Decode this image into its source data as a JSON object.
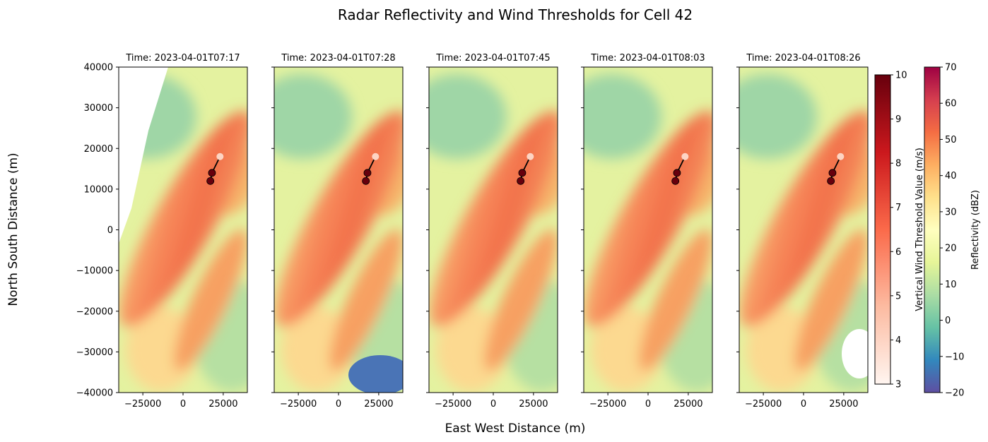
{
  "chart_data": {
    "type": "heatmap",
    "title": "Radar Reflectivity and Wind Thresholds for Cell 42",
    "xlabel": "East West Distance (m)",
    "ylabel": "North South Distance (m)",
    "xlim": [
      -40000,
      40000
    ],
    "ylim": [
      -40000,
      40000
    ],
    "x_ticks": [
      -25000,
      0,
      25000
    ],
    "x_tick_labels": [
      "−25000",
      "0",
      "25000"
    ],
    "y_ticks": [
      -40000,
      -30000,
      -20000,
      -10000,
      0,
      10000,
      20000,
      30000,
      40000
    ],
    "y_tick_labels": [
      "−40000",
      "−30000",
      "−20000",
      "−10000",
      "0",
      "10000",
      "20000",
      "30000",
      "40000"
    ],
    "panels": [
      {
        "title": "Time: 2023-04-01T07:17",
        "track": [
          [
            17000,
            12000
          ],
          [
            18000,
            14000
          ],
          [
            23000,
            18000
          ]
        ],
        "threshold_values": [
          10,
          10,
          4
        ]
      },
      {
        "title": "Time: 2023-04-01T07:28",
        "track": [
          [
            17000,
            12000
          ],
          [
            18000,
            14000
          ],
          [
            23000,
            18000
          ]
        ],
        "threshold_values": [
          10,
          10,
          4
        ]
      },
      {
        "title": "Time: 2023-04-01T07:45",
        "track": [
          [
            17000,
            12000
          ],
          [
            18000,
            14000
          ],
          [
            23000,
            18000
          ]
        ],
        "threshold_values": [
          10,
          10,
          4
        ]
      },
      {
        "title": "Time: 2023-04-01T08:03",
        "track": [
          [
            17000,
            12000
          ],
          [
            18000,
            14000
          ],
          [
            23000,
            18000
          ]
        ],
        "threshold_values": [
          10,
          10,
          4
        ]
      },
      {
        "title": "Time: 2023-04-01T08:26",
        "track": [
          [
            17000,
            12000
          ],
          [
            18000,
            14000
          ],
          [
            23000,
            18000
          ]
        ],
        "threshold_values": [
          10,
          10,
          4
        ]
      }
    ],
    "colorbars": [
      {
        "label": "Vertical Wind Threshold Value (m/s)",
        "colormap": "Reds",
        "range": [
          3,
          10
        ],
        "ticks": [
          3,
          4,
          5,
          6,
          7,
          8,
          9,
          10
        ],
        "tick_labels": [
          "3",
          "4",
          "5",
          "6",
          "7",
          "8",
          "9",
          "10"
        ]
      },
      {
        "label": "Reflectivity (dBZ)",
        "colormap": "Spectral_r",
        "range": [
          -20,
          70
        ],
        "ticks": [
          -20,
          -10,
          0,
          10,
          20,
          30,
          40,
          50,
          60,
          70
        ],
        "tick_labels": [
          "−20",
          "−10",
          "0",
          "10",
          "20",
          "30",
          "40",
          "50",
          "60",
          "70"
        ]
      }
    ]
  }
}
